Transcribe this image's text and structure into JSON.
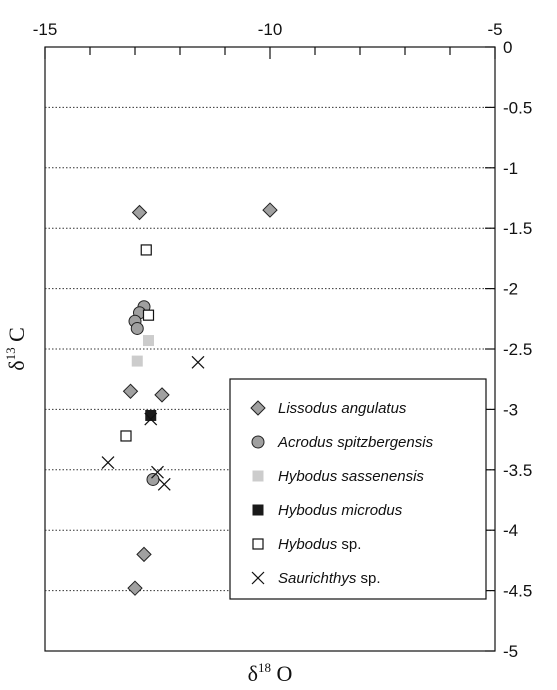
{
  "chart_data": {
    "type": "scatter",
    "xlabel": "δ18O",
    "ylabel": "δ13C",
    "xlim": [
      -15,
      -5
    ],
    "ylim": [
      -5,
      0
    ],
    "x_axis_position": "top",
    "y_axis_position": "right",
    "x_ticks": [
      -15,
      -10,
      -5
    ],
    "x_minor_step": 1,
    "y_ticks": [
      0,
      -0.5,
      -1,
      -1.5,
      -2,
      -2.5,
      -3,
      -3.5,
      -4,
      -4.5,
      -5
    ],
    "y_tick_labels": [
      "0",
      "-0.5",
      "-1",
      "-1.5",
      "-2",
      "-2.5",
      "-3",
      "-3.5",
      "-4",
      "-4.5",
      "-5"
    ],
    "grid": "dotted horizontal",
    "legend_position": "lower-right",
    "series": [
      {
        "name": "Lissodus angulatus",
        "marker": "diamond",
        "color": "#a0a0a0",
        "points": [
          [
            -12.9,
            -1.37
          ],
          [
            -10.0,
            -1.35
          ],
          [
            -13.1,
            -2.85
          ],
          [
            -12.4,
            -2.88
          ],
          [
            -12.8,
            -4.2
          ],
          [
            -13.0,
            -4.48
          ]
        ]
      },
      {
        "name": "Acrodus spitzbergensis",
        "marker": "circle",
        "color": "#a0a0a0",
        "points": [
          [
            -12.8,
            -2.15
          ],
          [
            -12.9,
            -2.2
          ],
          [
            -13.0,
            -2.27
          ],
          [
            -12.95,
            -2.33
          ],
          [
            -12.6,
            -3.58
          ]
        ]
      },
      {
        "name": "Hybodus sassenensis",
        "marker": "square",
        "color": "#cccccc",
        "points": [
          [
            -12.7,
            -2.43
          ],
          [
            -12.95,
            -2.6
          ]
        ]
      },
      {
        "name": "Hybodus microdus",
        "marker": "square",
        "color": "#1a1a1a",
        "points": [
          [
            -12.65,
            -3.05
          ]
        ]
      },
      {
        "name": "Hybodus sp.",
        "marker": "open-square",
        "color": "#111111",
        "points": [
          [
            -12.75,
            -1.68
          ],
          [
            -12.7,
            -2.22
          ],
          [
            -13.2,
            -3.22
          ]
        ]
      },
      {
        "name": "Saurichthys sp.",
        "marker": "x",
        "color": "#111111",
        "points": [
          [
            -11.6,
            -2.61
          ],
          [
            -12.65,
            -3.08
          ],
          [
            -13.6,
            -3.44
          ],
          [
            -12.5,
            -3.52
          ],
          [
            -12.35,
            -3.62
          ]
        ]
      }
    ]
  }
}
